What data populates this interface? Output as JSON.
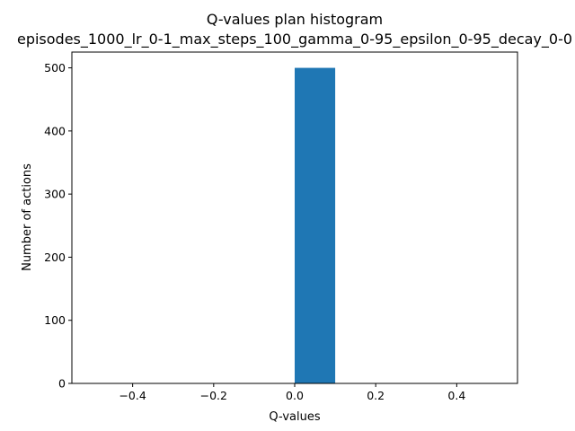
{
  "chart_data": {
    "type": "bar",
    "title": "Q-values plan histogram",
    "subtitle": "episodes_1000_lr_0-1_max_steps_100_gamma_0-95_epsilon_0-95_decay_0-0",
    "xlabel": "Q-values",
    "ylabel": "Number of actions",
    "xlim": [
      -0.55,
      0.55
    ],
    "ylim": [
      0,
      525
    ],
    "xticks": [
      -0.4,
      -0.2,
      0.0,
      0.2,
      0.4
    ],
    "xtick_labels": [
      "−0.4",
      "−0.2",
      "0.0",
      "0.2",
      "0.4"
    ],
    "yticks": [
      0,
      100,
      200,
      300,
      400,
      500
    ],
    "ytick_labels": [
      "0",
      "100",
      "200",
      "300",
      "400",
      "500"
    ],
    "bins": [
      {
        "x0": 0.0,
        "x1": 0.1,
        "count": 500
      }
    ],
    "bar_color": "#1f77b4",
    "grid": false,
    "legend": "none"
  }
}
